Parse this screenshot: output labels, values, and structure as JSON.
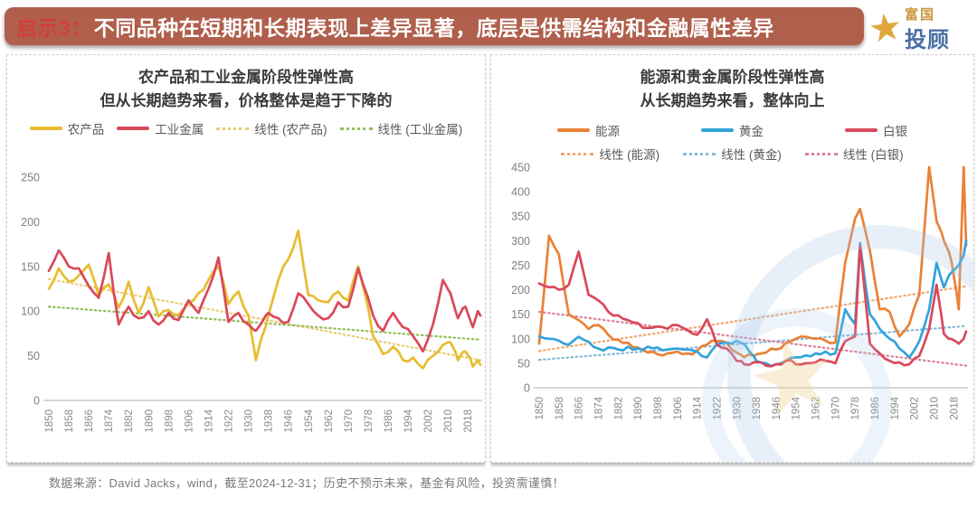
{
  "header": {
    "title_prefix": "启示3：",
    "title_rest": "不同品种在短期和长期表现上差异显著，底层是供需结构和金融属性差异",
    "bar_color": "#AF5F4B",
    "prefix_color": "#D23F3B"
  },
  "logo": {
    "star_icon": "star",
    "brand": "富国",
    "product": "投顾",
    "gold_color": "#DFA73E",
    "blue_color": "#4A6FA5"
  },
  "footer": {
    "text": "数据来源：David Jacks，wind，截至2024-12-31；历史不预示未来，基金有风险，投资需谨慎！"
  },
  "chart_data": [
    {
      "type": "line",
      "title_line1": "农产品和工业金属阶段性弹性高",
      "title_line2": "但从长期趋势来看，价格整体是趋于下降的",
      "xlim": [
        1850,
        2023
      ],
      "ylim": [
        0,
        250
      ],
      "ytick_step": 50,
      "grid": false,
      "legend_position": "top",
      "xticks": [
        1850,
        1858,
        1866,
        1874,
        1882,
        1890,
        1898,
        1906,
        1914,
        1922,
        1930,
        1938,
        1946,
        1954,
        1962,
        1970,
        1978,
        1986,
        1994,
        2002,
        2010,
        2018
      ],
      "x": [
        1850,
        1854,
        1858,
        1862,
        1866,
        1870,
        1874,
        1878,
        1882,
        1886,
        1890,
        1894,
        1898,
        1902,
        1906,
        1910,
        1914,
        1918,
        1922,
        1926,
        1930,
        1933,
        1938,
        1942,
        1946,
        1950,
        1954,
        1958,
        1962,
        1966,
        1970,
        1974,
        1978,
        1980,
        1984,
        1988,
        1992,
        1996,
        2000,
        2004,
        2008,
        2011,
        2014,
        2017,
        2020,
        2022,
        2023
      ],
      "series": [
        {
          "name": "农产品",
          "color": "#E8BC2E",
          "values": [
            125,
            148,
            133,
            140,
            152,
            118,
            130,
            104,
            133,
            98,
            127,
            94,
            101,
            96,
            109,
            120,
            135,
            150,
            108,
            122,
            95,
            45,
            95,
            135,
            158,
            190,
            118,
            112,
            110,
            122,
            112,
            150,
            104,
            72,
            52,
            60,
            45,
            48,
            36,
            50,
            62,
            65,
            45,
            55,
            38,
            45,
            40
          ]
        },
        {
          "name": "工业金属",
          "color": "#D9495B",
          "values": [
            145,
            168,
            150,
            148,
            128,
            115,
            165,
            85,
            105,
            92,
            100,
            85,
            98,
            90,
            112,
            98,
            125,
            160,
            88,
            98,
            85,
            78,
            98,
            92,
            88,
            120,
            108,
            95,
            92,
            110,
            105,
            148,
            115,
            95,
            78,
            98,
            82,
            72,
            55,
            85,
            135,
            120,
            92,
            105,
            82,
            100,
            95
          ]
        }
      ],
      "trendlines": [
        {
          "name": "线性 (农产品)",
          "color": "#E9CB76",
          "start": 136,
          "end": 45
        },
        {
          "name": "线性 (工业金属)",
          "color": "#93BE59",
          "start": 105,
          "end": 68
        }
      ]
    },
    {
      "type": "line",
      "title_line1": "能源和贵金属阶段性弹性高",
      "title_line2": "从长期趋势来看，整体向上",
      "xlim": [
        1850,
        2023
      ],
      "ylim": [
        0,
        450
      ],
      "ytick_step": 50,
      "grid": false,
      "legend_position": "top",
      "xticks": [
        1850,
        1858,
        1866,
        1874,
        1882,
        1890,
        1898,
        1906,
        1914,
        1922,
        1930,
        1938,
        1946,
        1954,
        1962,
        1970,
        1978,
        1986,
        1994,
        2002,
        2010,
        2018
      ],
      "x": [
        1850,
        1854,
        1858,
        1862,
        1866,
        1870,
        1874,
        1878,
        1882,
        1886,
        1890,
        1894,
        1898,
        1902,
        1906,
        1910,
        1914,
        1918,
        1922,
        1926,
        1930,
        1933,
        1938,
        1942,
        1946,
        1950,
        1954,
        1958,
        1962,
        1966,
        1970,
        1974,
        1978,
        1980,
        1984,
        1988,
        1992,
        1996,
        2000,
        2004,
        2008,
        2011,
        2014,
        2017,
        2020,
        2022,
        2023
      ],
      "series": [
        {
          "name": "能源",
          "color": "#EA8136",
          "values": [
            90,
            310,
            272,
            150,
            138,
            120,
            128,
            108,
            98,
            92,
            82,
            72,
            68,
            70,
            74,
            70,
            76,
            88,
            95,
            92,
            72,
            62,
            68,
            72,
            78,
            92,
            100,
            104,
            100,
            96,
            92,
            255,
            345,
            365,
            280,
            160,
            155,
            105,
            130,
            190,
            450,
            340,
            300,
            260,
            160,
            450,
            290
          ]
        },
        {
          "name": "黄金",
          "color": "#32A3DA",
          "values": [
            105,
            100,
            96,
            88,
            104,
            94,
            80,
            82,
            78,
            84,
            80,
            84,
            82,
            78,
            80,
            78,
            74,
            62,
            88,
            92,
            96,
            90,
            55,
            50,
            48,
            55,
            62,
            66,
            70,
            74,
            70,
            160,
            130,
            295,
            150,
            120,
            100,
            80,
            62,
            95,
            160,
            255,
            205,
            235,
            250,
            270,
            300
          ]
        },
        {
          "name": "白银",
          "color": "#D9495B",
          "values": [
            213,
            205,
            200,
            210,
            278,
            190,
            178,
            155,
            148,
            138,
            132,
            122,
            125,
            120,
            128,
            118,
            108,
            140,
            88,
            80,
            55,
            48,
            52,
            45,
            48,
            55,
            48,
            50,
            52,
            55,
            50,
            95,
            105,
            290,
            90,
            70,
            55,
            52,
            48,
            65,
            120,
            210,
            110,
            100,
            90,
            100,
            115
          ]
        }
      ],
      "trendlines": [
        {
          "name": "线性 (能源)",
          "color": "#F0A770",
          "start": 75,
          "end": 207
        },
        {
          "name": "线性 (黄金)",
          "color": "#85B8D8",
          "start": 57,
          "end": 126
        },
        {
          "name": "线性 (白银)",
          "color": "#DD8094",
          "start": 155,
          "end": 45
        }
      ]
    }
  ]
}
